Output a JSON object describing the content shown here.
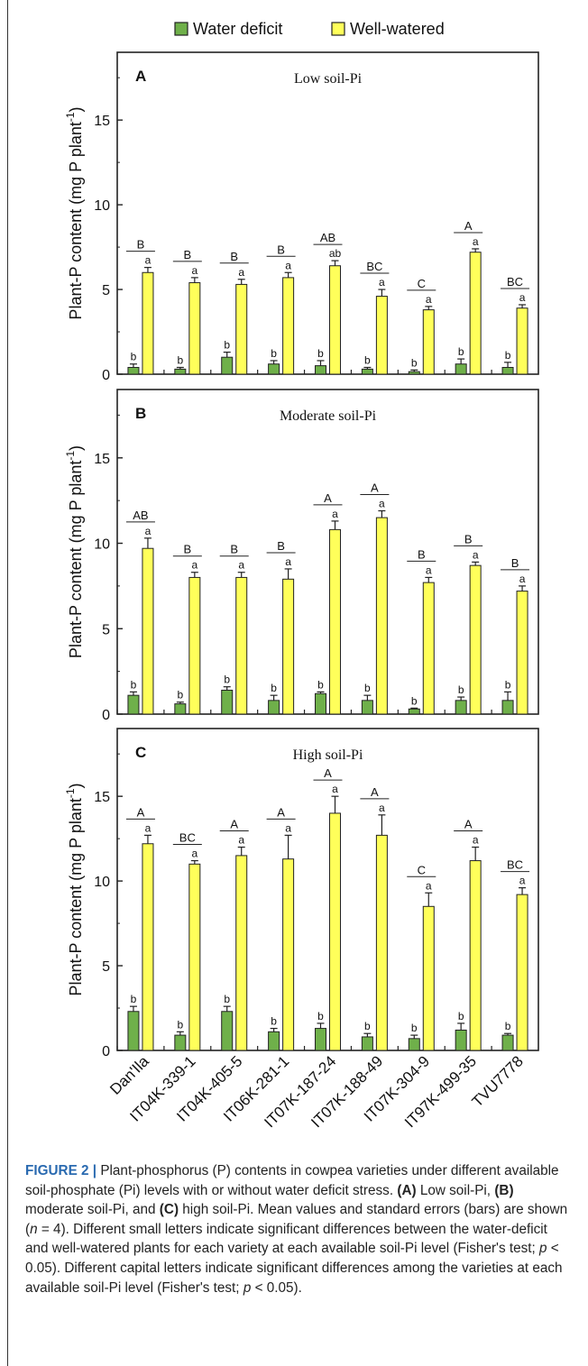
{
  "legend": [
    {
      "label": "Water deficit",
      "color": "#6fb04a"
    },
    {
      "label": "Well-watered",
      "color": "#ffff5a"
    }
  ],
  "y_label_main": "Plant-P content (mg P plant",
  "y_label_sup": "-1",
  "y_label_end": ")",
  "chart_data": [
    {
      "type": "bar",
      "panel": "A",
      "title": "Low soil-Pi",
      "categories": [
        "Dan'Ila",
        "IT04K-339-1",
        "IT04K-405-5",
        "IT06K-281-1",
        "IT07K-187-24",
        "IT07K-188-49",
        "IT07K-304-9",
        "IT97K-499-35",
        "TVU7778"
      ],
      "ylim": [
        0,
        19
      ],
      "yticks": [
        0,
        5,
        10,
        15
      ],
      "series": [
        {
          "name": "Water deficit",
          "values": [
            0.4,
            0.3,
            1.0,
            0.6,
            0.5,
            0.3,
            0.15,
            0.6,
            0.4
          ],
          "errors": [
            0.2,
            0.1,
            0.3,
            0.2,
            0.3,
            0.1,
            0.1,
            0.3,
            0.3
          ],
          "letters": [
            "b",
            "b",
            "b",
            "b",
            "b",
            "b",
            "b",
            "b",
            "b"
          ]
        },
        {
          "name": "Well-watered",
          "values": [
            6.0,
            5.4,
            5.3,
            5.7,
            6.4,
            4.6,
            3.8,
            7.2,
            3.9
          ],
          "errors": [
            0.3,
            0.3,
            0.3,
            0.3,
            0.3,
            0.4,
            0.2,
            0.2,
            0.2
          ],
          "letters": [
            "a",
            "a",
            "a",
            "a",
            "ab",
            "a",
            "a",
            "a",
            "a"
          ]
        }
      ],
      "group_letters": [
        "B",
        "B",
        "B",
        "B",
        "AB",
        "BC",
        "C",
        "A",
        "BC"
      ]
    },
    {
      "type": "bar",
      "panel": "B",
      "title": "Moderate soil-Pi",
      "categories": [
        "Dan'Ila",
        "IT04K-339-1",
        "IT04K-405-5",
        "IT06K-281-1",
        "IT07K-187-24",
        "IT07K-188-49",
        "IT07K-304-9",
        "IT97K-499-35",
        "TVU7778"
      ],
      "ylim": [
        0,
        19
      ],
      "yticks": [
        0,
        5,
        10,
        15
      ],
      "series": [
        {
          "name": "Water deficit",
          "values": [
            1.1,
            0.6,
            1.4,
            0.8,
            1.2,
            0.8,
            0.3,
            0.8,
            0.8
          ],
          "errors": [
            0.2,
            0.1,
            0.2,
            0.3,
            0.1,
            0.3,
            0.05,
            0.2,
            0.5
          ],
          "letters": [
            "b",
            "b",
            "b",
            "b",
            "b",
            "b",
            "b",
            "b",
            "b"
          ]
        },
        {
          "name": "Well-watered",
          "values": [
            9.7,
            8.0,
            8.0,
            7.9,
            10.8,
            11.5,
            7.7,
            8.7,
            7.2
          ],
          "errors": [
            0.6,
            0.3,
            0.3,
            0.6,
            0.5,
            0.4,
            0.3,
            0.2,
            0.3
          ],
          "letters": [
            "a",
            "a",
            "a",
            "a",
            "a",
            "a",
            "a",
            "a",
            "a"
          ]
        }
      ],
      "group_letters": [
        "AB",
        "B",
        "B",
        "B",
        "A",
        "A",
        "B",
        "B",
        "B"
      ]
    },
    {
      "type": "bar",
      "panel": "C",
      "title": "High soil-Pi",
      "categories": [
        "Dan'Ila",
        "IT04K-339-1",
        "IT04K-405-5",
        "IT06K-281-1",
        "IT07K-187-24",
        "IT07K-188-49",
        "IT07K-304-9",
        "IT97K-499-35",
        "TVU7778"
      ],
      "ylim": [
        0,
        19
      ],
      "yticks": [
        0,
        5,
        10,
        15
      ],
      "series": [
        {
          "name": "Water deficit",
          "values": [
            2.3,
            0.9,
            2.3,
            1.1,
            1.3,
            0.8,
            0.7,
            1.2,
            0.9
          ],
          "errors": [
            0.3,
            0.2,
            0.3,
            0.2,
            0.3,
            0.2,
            0.2,
            0.4,
            0.1
          ],
          "letters": [
            "b",
            "b",
            "b",
            "b",
            "b",
            "b",
            "b",
            "b",
            "b"
          ]
        },
        {
          "name": "Well-watered",
          "values": [
            12.2,
            11.0,
            11.5,
            11.3,
            14.0,
            12.7,
            8.5,
            11.2,
            9.2
          ],
          "errors": [
            0.5,
            0.2,
            0.5,
            1.4,
            1.0,
            1.2,
            0.8,
            0.8,
            0.4
          ],
          "letters": [
            "a",
            "a",
            "a",
            "a",
            "a",
            "a",
            "a",
            "a",
            "a"
          ]
        }
      ],
      "group_letters": [
        "A",
        "BC",
        "A",
        "A",
        "A",
        "A",
        "C",
        "A",
        "BC"
      ]
    }
  ],
  "caption": {
    "label": "FIGURE 2 |",
    "text1": " Plant-phosphorus (P) contents in cowpea varieties under different available soil-phosphate (Pi) levels with or without water deficit stress. ",
    "a": "(A)",
    "text2": " Low soil-Pi, ",
    "b": "(B)",
    "text3": " moderate soil-Pi, and ",
    "c": "(C)",
    "text4": " high soil-Pi. Mean values and standard errors (bars) are shown (",
    "n": "n",
    "text5": " = 4). Different small letters indicate significant differences between the water-deficit and well-watered plants for each variety at each available soil-Pi level (Fisher's test; ",
    "p1": "p",
    "text6": " < 0.05). Different capital letters indicate significant differences among the varieties at each available soil-Pi level (Fisher's test; ",
    "p2": "p",
    "text7": " < 0.05)."
  }
}
